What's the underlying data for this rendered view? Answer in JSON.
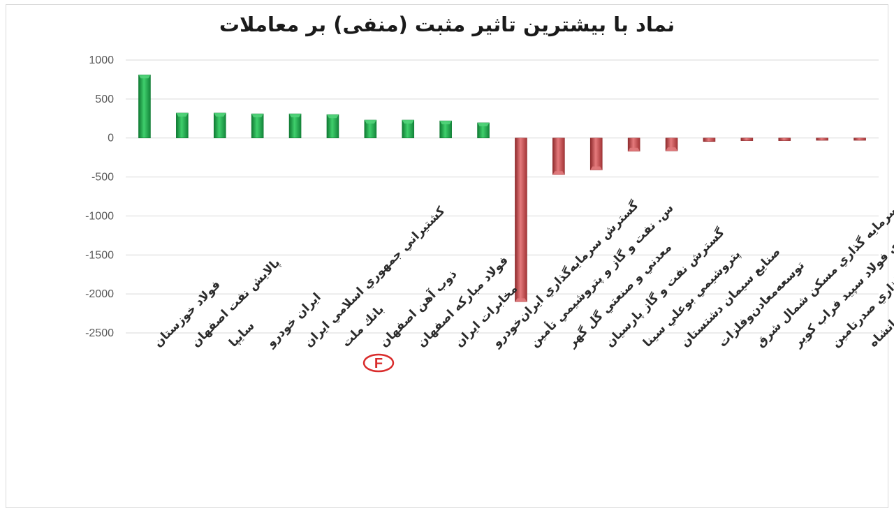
{
  "chart_data": {
    "type": "bar",
    "title": "نماد با بیشترین تاثیر مثبت (منفی) بر معاملات",
    "xlabel": "",
    "ylabel": "",
    "ylim": [
      -2500,
      1000
    ],
    "yticks": [
      1000,
      500,
      0,
      -500,
      -1000,
      -1500,
      -2000,
      -2500
    ],
    "ytick_labels": [
      "1000",
      "500",
      "0",
      "-500",
      "-1000",
      "-1500",
      "-2000",
      "-2500"
    ],
    "grid": true,
    "legend": "none",
    "categories": [
      "فولاد خوزستان",
      "پالايش نفت اصفهان",
      "سايپا",
      "ايران خودرو",
      "كشتيراني جمهوري اسلامي ايران",
      "بانك ملت",
      "ذوب آهن اصفهان",
      "فولاد مباركه اصفهان",
      "مخابرات ايران",
      "گسترش سرمايه‌گذاري ايران‌خودرو",
      "س. نفت و گاز و پتروشيمي تأمين",
      "معدني و صنعتي گل گهر",
      "گسترش نفت و گاز پارسيان",
      "پتروشيمي بوعلي سينا",
      "صنايع سيمان دشتستان",
      "توسعه‌معادن‌وفلزات",
      "سرمايه گذاري مسكن شمال شرق",
      "توليدي فولاد سپيد فراب كوير",
      "سرمايه گذاري صدرتامين",
      "صنايع پتروشيمي كرمانشاه"
    ],
    "values": [
      810,
      320,
      320,
      310,
      310,
      300,
      230,
      230,
      220,
      195,
      -2100,
      -470,
      -410,
      -170,
      -165,
      -45,
      -35,
      -35,
      -30,
      -30
    ],
    "colors": {
      "positive": "#1fae4b",
      "positive_light": "#52d37a",
      "positive_dark": "#0f7a32",
      "negative": "#c9484a",
      "negative_light": "#e07a7c",
      "negative_dark": "#8e2a2c",
      "grid": "#d9d9d9",
      "axis_text": "#595959"
    }
  },
  "watermark": {
    "letter": "F",
    "icon": "logo-badge-icon"
  }
}
